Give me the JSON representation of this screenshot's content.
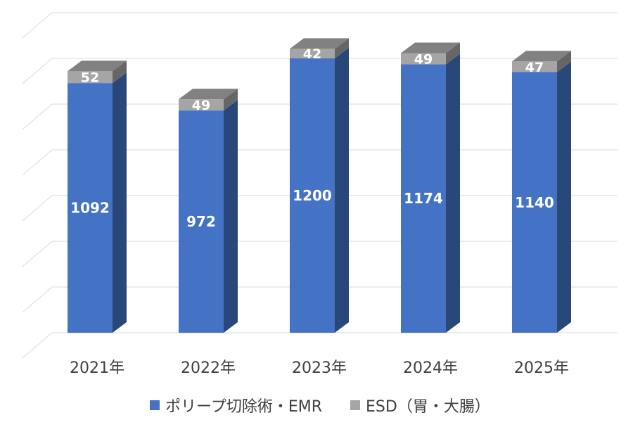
{
  "chart_data": {
    "type": "bar",
    "stacked": true,
    "three_d": true,
    "categories": [
      "2021年",
      "2022年",
      "2023年",
      "2024年",
      "2025年"
    ],
    "series": [
      {
        "name": "ポリープ切除術・EMR",
        "color": "#4472C4",
        "values": [
          1092,
          972,
          1200,
          1174,
          1140
        ]
      },
      {
        "name": "ESD（胃・大腸）",
        "color": "#A5A5A5",
        "values": [
          52,
          49,
          42,
          49,
          47
        ]
      }
    ],
    "ylim": [
      0,
      1400
    ],
    "grid": true,
    "legend_position": "bottom"
  }
}
